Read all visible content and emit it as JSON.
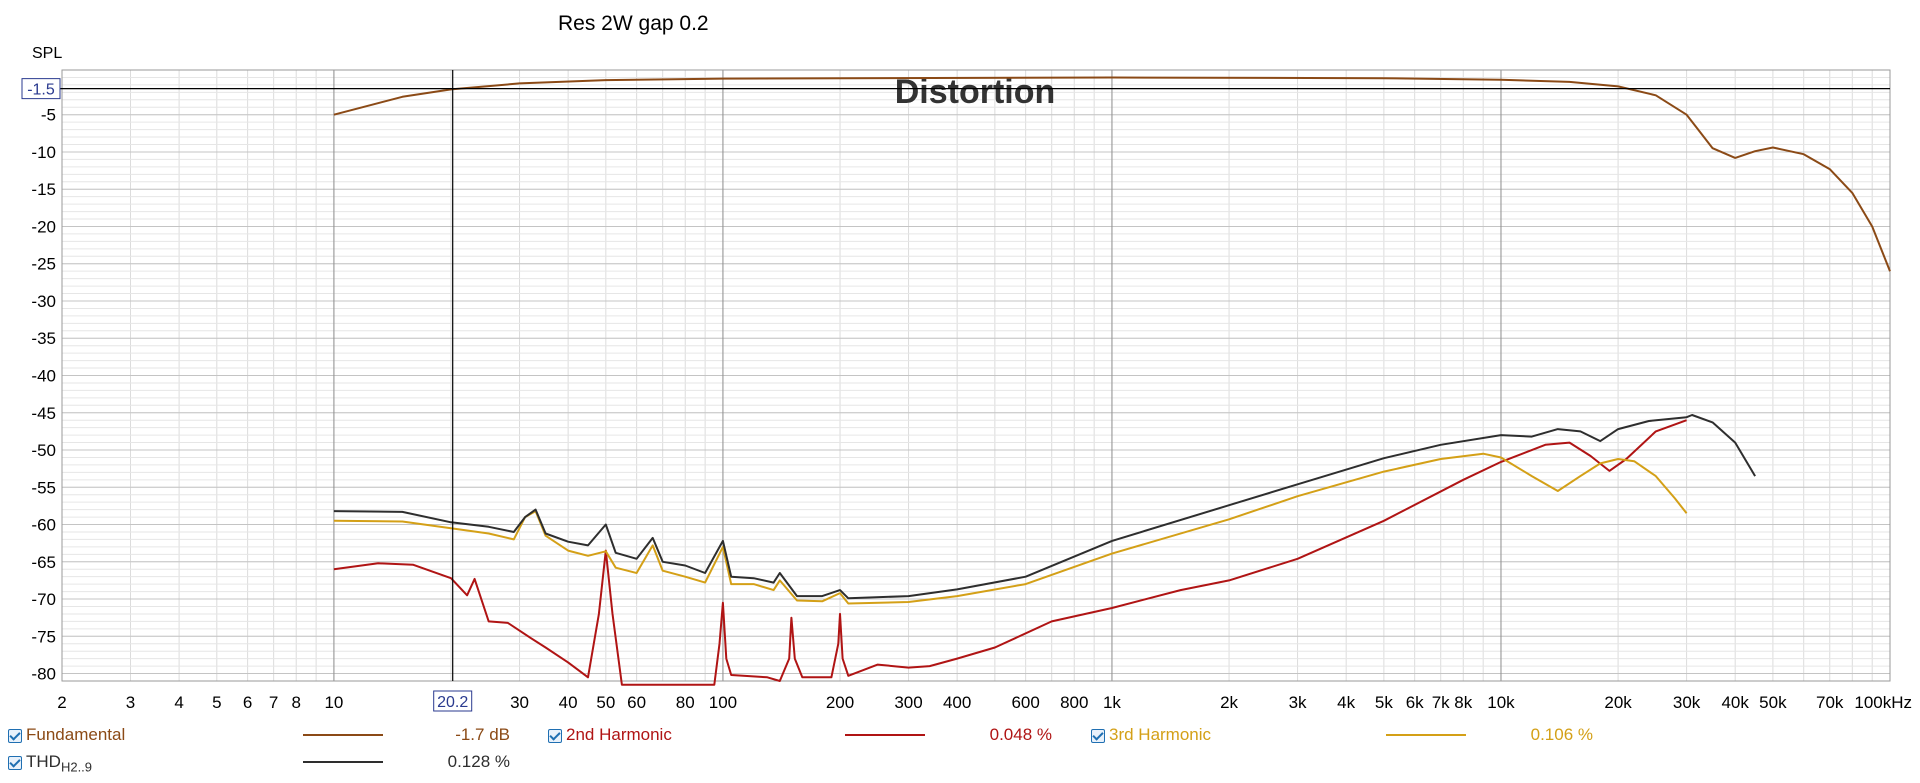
{
  "chart_data": {
    "type": "line",
    "title": "Res 2W gap 0.2",
    "overlay_text": "Distortion",
    "ylabel": "SPL",
    "x_scale": "log",
    "xlim": [
      2,
      100000
    ],
    "ylim": [
      -81,
      1
    ],
    "x_ticks": [
      {
        "v": 2,
        "label": "2"
      },
      {
        "v": 3,
        "label": "3"
      },
      {
        "v": 4,
        "label": "4"
      },
      {
        "v": 5,
        "label": "5"
      },
      {
        "v": 6,
        "label": "6"
      },
      {
        "v": 7,
        "label": "7"
      },
      {
        "v": 8,
        "label": "8"
      },
      {
        "v": 10,
        "label": "10"
      },
      {
        "v": 30,
        "label": "30"
      },
      {
        "v": 40,
        "label": "40"
      },
      {
        "v": 50,
        "label": "50"
      },
      {
        "v": 60,
        "label": "60"
      },
      {
        "v": 80,
        "label": "80"
      },
      {
        "v": 100,
        "label": "100"
      },
      {
        "v": 200,
        "label": "200"
      },
      {
        "v": 300,
        "label": "300"
      },
      {
        "v": 400,
        "label": "400"
      },
      {
        "v": 600,
        "label": "600"
      },
      {
        "v": 800,
        "label": "800"
      },
      {
        "v": 1000,
        "label": "1k"
      },
      {
        "v": 2000,
        "label": "2k"
      },
      {
        "v": 3000,
        "label": "3k"
      },
      {
        "v": 4000,
        "label": "4k"
      },
      {
        "v": 5000,
        "label": "5k"
      },
      {
        "v": 6000,
        "label": "6k"
      },
      {
        "v": 7000,
        "label": "7k"
      },
      {
        "v": 8000,
        "label": "8k"
      },
      {
        "v": 10000,
        "label": "10k"
      },
      {
        "v": 20000,
        "label": "20k"
      },
      {
        "v": 30000,
        "label": "30k"
      },
      {
        "v": 40000,
        "label": "40k"
      },
      {
        "v": 50000,
        "label": "50k"
      },
      {
        "v": 70000,
        "label": "70k"
      },
      {
        "v": 100000,
        "label": "100kHz"
      }
    ],
    "y_ticks": [
      {
        "v": -5,
        "label": "-5"
      },
      {
        "v": -10,
        "label": "-10"
      },
      {
        "v": -15,
        "label": "-15"
      },
      {
        "v": -20,
        "label": "-20"
      },
      {
        "v": -25,
        "label": "-25"
      },
      {
        "v": -30,
        "label": "-30"
      },
      {
        "v": -35,
        "label": "-35"
      },
      {
        "v": -40,
        "label": "-40"
      },
      {
        "v": -45,
        "label": "-45"
      },
      {
        "v": -50,
        "label": "-50"
      },
      {
        "v": -55,
        "label": "-55"
      },
      {
        "v": -60,
        "label": "-60"
      },
      {
        "v": -65,
        "label": "-65"
      },
      {
        "v": -70,
        "label": "-70"
      },
      {
        "v": -75,
        "label": "-75"
      },
      {
        "v": -80,
        "label": "-80"
      }
    ],
    "cursor": {
      "x": 20.2,
      "x_label": "20.2",
      "y": -1.5,
      "y_label": "-1.5"
    },
    "grid": true,
    "series": [
      {
        "name": "Fundamental",
        "color": "#8b4a16",
        "value": "-1.7 dB",
        "points": [
          [
            10,
            -5
          ],
          [
            15,
            -2.6
          ],
          [
            20,
            -1.6
          ],
          [
            30,
            -0.8
          ],
          [
            50,
            -0.35
          ],
          [
            100,
            -0.15
          ],
          [
            1000,
            0
          ],
          [
            5000,
            -0.1
          ],
          [
            10000,
            -0.3
          ],
          [
            15000,
            -0.6
          ],
          [
            20000,
            -1.2
          ],
          [
            25000,
            -2.4
          ],
          [
            30000,
            -5
          ],
          [
            35000,
            -9.5
          ],
          [
            40000,
            -10.8
          ],
          [
            45000,
            -9.9
          ],
          [
            50000,
            -9.4
          ],
          [
            60000,
            -10.3
          ],
          [
            70000,
            -12.3
          ],
          [
            80000,
            -15.5
          ],
          [
            90000,
            -20
          ],
          [
            100000,
            -26
          ]
        ]
      },
      {
        "name": "2nd Harmonic",
        "color": "#b01414",
        "value": "0.048 %",
        "points": [
          [
            10,
            -66
          ],
          [
            13,
            -65.2
          ],
          [
            16,
            -65.4
          ],
          [
            20,
            -67.2
          ],
          [
            22,
            -69.5
          ],
          [
            23,
            -67.3
          ],
          [
            25,
            -73
          ],
          [
            28,
            -73.2
          ],
          [
            32,
            -75.2
          ],
          [
            35,
            -76.5
          ],
          [
            40,
            -78.5
          ],
          [
            45,
            -80.5
          ],
          [
            48,
            -72
          ],
          [
            50,
            -63.5
          ],
          [
            52,
            -72
          ],
          [
            55,
            -81.5
          ],
          [
            95,
            -81.5
          ],
          [
            98,
            -76
          ],
          [
            100,
            -70.5
          ],
          [
            102,
            -78
          ],
          [
            105,
            -80.2
          ],
          [
            130,
            -80.5
          ],
          [
            140,
            -81
          ],
          [
            148,
            -78
          ],
          [
            150,
            -72.5
          ],
          [
            153,
            -78
          ],
          [
            160,
            -80.5
          ],
          [
            190,
            -80.5
          ],
          [
            198,
            -76
          ],
          [
            200,
            -72
          ],
          [
            203,
            -78
          ],
          [
            210,
            -80.3
          ],
          [
            250,
            -78.8
          ],
          [
            300,
            -79.2
          ],
          [
            340,
            -79
          ],
          [
            400,
            -78
          ],
          [
            500,
            -76.5
          ],
          [
            700,
            -73
          ],
          [
            1000,
            -71.2
          ],
          [
            1500,
            -68.8
          ],
          [
            2000,
            -67.5
          ],
          [
            3000,
            -64.6
          ],
          [
            5000,
            -59.5
          ],
          [
            8000,
            -54
          ],
          [
            10000,
            -51.6
          ],
          [
            13000,
            -49.3
          ],
          [
            15000,
            -49
          ],
          [
            17000,
            -50.8
          ],
          [
            19000,
            -52.8
          ],
          [
            21000,
            -51.2
          ],
          [
            25000,
            -47.5
          ],
          [
            30000,
            -46
          ]
        ]
      },
      {
        "name": "3rd Harmonic",
        "color": "#d4a017",
        "value": "0.106 %",
        "points": [
          [
            10,
            -59.5
          ],
          [
            15,
            -59.6
          ],
          [
            20,
            -60.5
          ],
          [
            25,
            -61.2
          ],
          [
            29,
            -62
          ],
          [
            31,
            -59
          ],
          [
            33,
            -58.2
          ],
          [
            35,
            -61.5
          ],
          [
            40,
            -63.5
          ],
          [
            45,
            -64.2
          ],
          [
            50,
            -63.6
          ],
          [
            53,
            -65.8
          ],
          [
            60,
            -66.5
          ],
          [
            66,
            -62.8
          ],
          [
            70,
            -66.2
          ],
          [
            80,
            -67
          ],
          [
            90,
            -67.8
          ],
          [
            100,
            -63
          ],
          [
            105,
            -68
          ],
          [
            120,
            -68
          ],
          [
            135,
            -68.8
          ],
          [
            140,
            -67.5
          ],
          [
            155,
            -70.2
          ],
          [
            180,
            -70.3
          ],
          [
            200,
            -69.2
          ],
          [
            210,
            -70.6
          ],
          [
            300,
            -70.4
          ],
          [
            400,
            -69.6
          ],
          [
            600,
            -68
          ],
          [
            1000,
            -63.9
          ],
          [
            2000,
            -59.3
          ],
          [
            3000,
            -56.2
          ],
          [
            5000,
            -52.9
          ],
          [
            7000,
            -51.2
          ],
          [
            9000,
            -50.5
          ],
          [
            10000,
            -51
          ],
          [
            12000,
            -53.5
          ],
          [
            14000,
            -55.5
          ],
          [
            16000,
            -53.5
          ],
          [
            18000,
            -51.8
          ],
          [
            20000,
            -51.2
          ],
          [
            22000,
            -51.5
          ],
          [
            25000,
            -53.5
          ],
          [
            28000,
            -56.5
          ],
          [
            30000,
            -58.5
          ]
        ]
      },
      {
        "name": "THD",
        "name_sub": "H2..9",
        "color": "#2e2e2e",
        "value": "0.128 %",
        "points": [
          [
            10,
            -58.2
          ],
          [
            15,
            -58.3
          ],
          [
            20,
            -59.7
          ],
          [
            25,
            -60.3
          ],
          [
            29,
            -61
          ],
          [
            31,
            -59
          ],
          [
            33,
            -58
          ],
          [
            35,
            -61.2
          ],
          [
            40,
            -62.3
          ],
          [
            45,
            -62.8
          ],
          [
            50,
            -60
          ],
          [
            53,
            -63.8
          ],
          [
            60,
            -64.6
          ],
          [
            66,
            -61.8
          ],
          [
            70,
            -65
          ],
          [
            80,
            -65.5
          ],
          [
            90,
            -66.5
          ],
          [
            100,
            -62.2
          ],
          [
            105,
            -67
          ],
          [
            120,
            -67.2
          ],
          [
            135,
            -67.8
          ],
          [
            140,
            -66.5
          ],
          [
            155,
            -69.6
          ],
          [
            180,
            -69.6
          ],
          [
            200,
            -68.8
          ],
          [
            210,
            -69.9
          ],
          [
            300,
            -69.6
          ],
          [
            400,
            -68.7
          ],
          [
            600,
            -67
          ],
          [
            1000,
            -62.2
          ],
          [
            2000,
            -57.4
          ],
          [
            3000,
            -54.6
          ],
          [
            5000,
            -51.1
          ],
          [
            7000,
            -49.3
          ],
          [
            10000,
            -48
          ],
          [
            12000,
            -48.2
          ],
          [
            14000,
            -47.2
          ],
          [
            16000,
            -47.5
          ],
          [
            18000,
            -48.8
          ],
          [
            20000,
            -47.2
          ],
          [
            24000,
            -46.1
          ],
          [
            30000,
            -45.6
          ],
          [
            31000,
            -45.3
          ],
          [
            35000,
            -46.3
          ],
          [
            40000,
            -49
          ],
          [
            45000,
            -53.5
          ]
        ]
      }
    ]
  },
  "legend": [
    {
      "label": "Fundamental",
      "value": "-1.7 dB",
      "color": "#8b4a16"
    },
    {
      "label": "2nd Harmonic",
      "value": "0.048 %",
      "color": "#b01414"
    },
    {
      "label": "3rd Harmonic",
      "value": "0.106 %",
      "color": "#d4a017"
    },
    {
      "label": "THD",
      "sub": "H2..9",
      "value": "0.128 %",
      "color": "#2e2e2e"
    }
  ]
}
